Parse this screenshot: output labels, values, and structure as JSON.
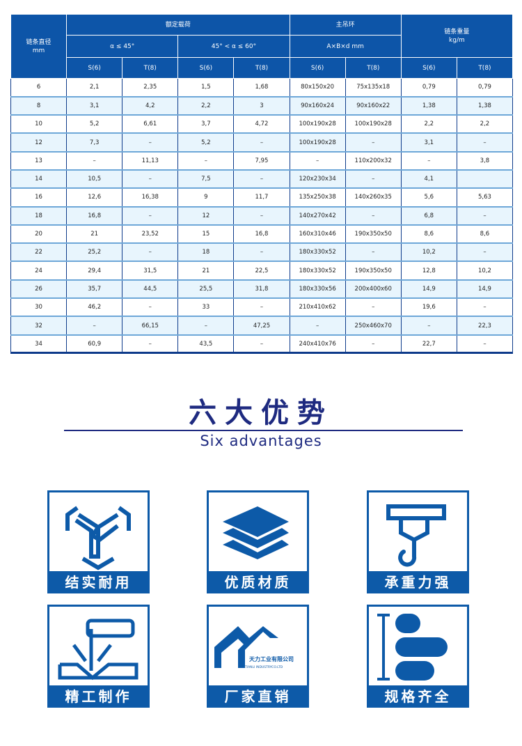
{
  "table": {
    "header": {
      "diameter": "链条直径",
      "diameter_unit": "mm",
      "rated_load": "额定载荷",
      "angle1": "α ≤ 45°",
      "angle2": "45° < α ≤ 60°",
      "main_ring": "主吊环",
      "main_ring_dim": "A×B×d mm",
      "weight": "链条重量",
      "weight_unit": "kg/m",
      "grades": [
        "S(6)",
        "T(8)",
        "S(6)",
        "T(8)",
        "S(6)",
        "T(8)",
        "S(6)",
        "T(8)"
      ]
    },
    "rows": [
      [
        "6",
        "2,1",
        "2,35",
        "1,5",
        "1,68",
        "80x150x20",
        "75x135x18",
        "0,79",
        "0,79"
      ],
      [
        "8",
        "3,1",
        "4,2",
        "2,2",
        "3",
        "90x160x24",
        "90x160x22",
        "1,38",
        "1,38"
      ],
      [
        "10",
        "5,2",
        "6,61",
        "3,7",
        "4,72",
        "100x190x28",
        "100x190x28",
        "2,2",
        "2,2"
      ],
      [
        "12",
        "7,3",
        "–",
        "5,2",
        "–",
        "100x190x28",
        "–",
        "3,1",
        "–"
      ],
      [
        "13",
        "–",
        "11,13",
        "–",
        "7,95",
        "–",
        "110x200x32",
        "–",
        "3,8"
      ],
      [
        "14",
        "10,5",
        "–",
        "7,5",
        "–",
        "120x230x34",
        "–",
        "4,1",
        ""
      ],
      [
        "16",
        "12,6",
        "16,38",
        "9",
        "11,7",
        "135x250x38",
        "140x260x35",
        "5,6",
        "5,63"
      ],
      [
        "18",
        "16,8",
        "–",
        "12",
        "–",
        "140x270x42",
        "–",
        "6,8",
        "–"
      ],
      [
        "20",
        "21",
        "23,52",
        "15",
        "16,8",
        "160x310x46",
        "190x350x50",
        "8,6",
        "8,6"
      ],
      [
        "22",
        "25,2",
        "–",
        "18",
        "–",
        "180x330x52",
        "–",
        "10,2",
        "–"
      ],
      [
        "24",
        "29,4",
        "31,5",
        "21",
        "22,5",
        "180x330x52",
        "190x350x50",
        "12,8",
        "10,2"
      ],
      [
        "26",
        "35,7",
        "44,5",
        "25,5",
        "31,8",
        "180x330x56",
        "200x400x60",
        "14,9",
        "14,9"
      ],
      [
        "30",
        "46,2",
        "–",
        "33",
        "–",
        "210x410x62",
        "–",
        "19,6",
        "–"
      ],
      [
        "32",
        "–",
        "66,15",
        "–",
        "47,25",
        "–",
        "250x460x70",
        "–",
        "22,3"
      ],
      [
        "34",
        "60,9",
        "–",
        "43,5",
        "–",
        "240x410x76",
        "–",
        "22,7",
        "–"
      ]
    ]
  },
  "section": {
    "title": "六大优势",
    "subtitle": "Six advantages"
  },
  "advantages": [
    {
      "label": "结实耐用",
      "icon": "chain-link-icon"
    },
    {
      "label": "优质材质",
      "icon": "layers-icon"
    },
    {
      "label": "承重力强",
      "icon": "crane-hook-icon"
    },
    {
      "label": "精工制作",
      "icon": "laser-cutting-icon"
    },
    {
      "label": "厂家直销",
      "icon": "factory-logo-icon",
      "logo_text": "天力工业有限公司",
      "logo_sub": "TIANLI INDUSTRYCO.LTD"
    },
    {
      "label": "规格齐全",
      "icon": "size-range-icon"
    }
  ],
  "colors": {
    "primary": "#0d55a8",
    "title": "#1e2a80",
    "stripe": "#e8f5fd"
  }
}
